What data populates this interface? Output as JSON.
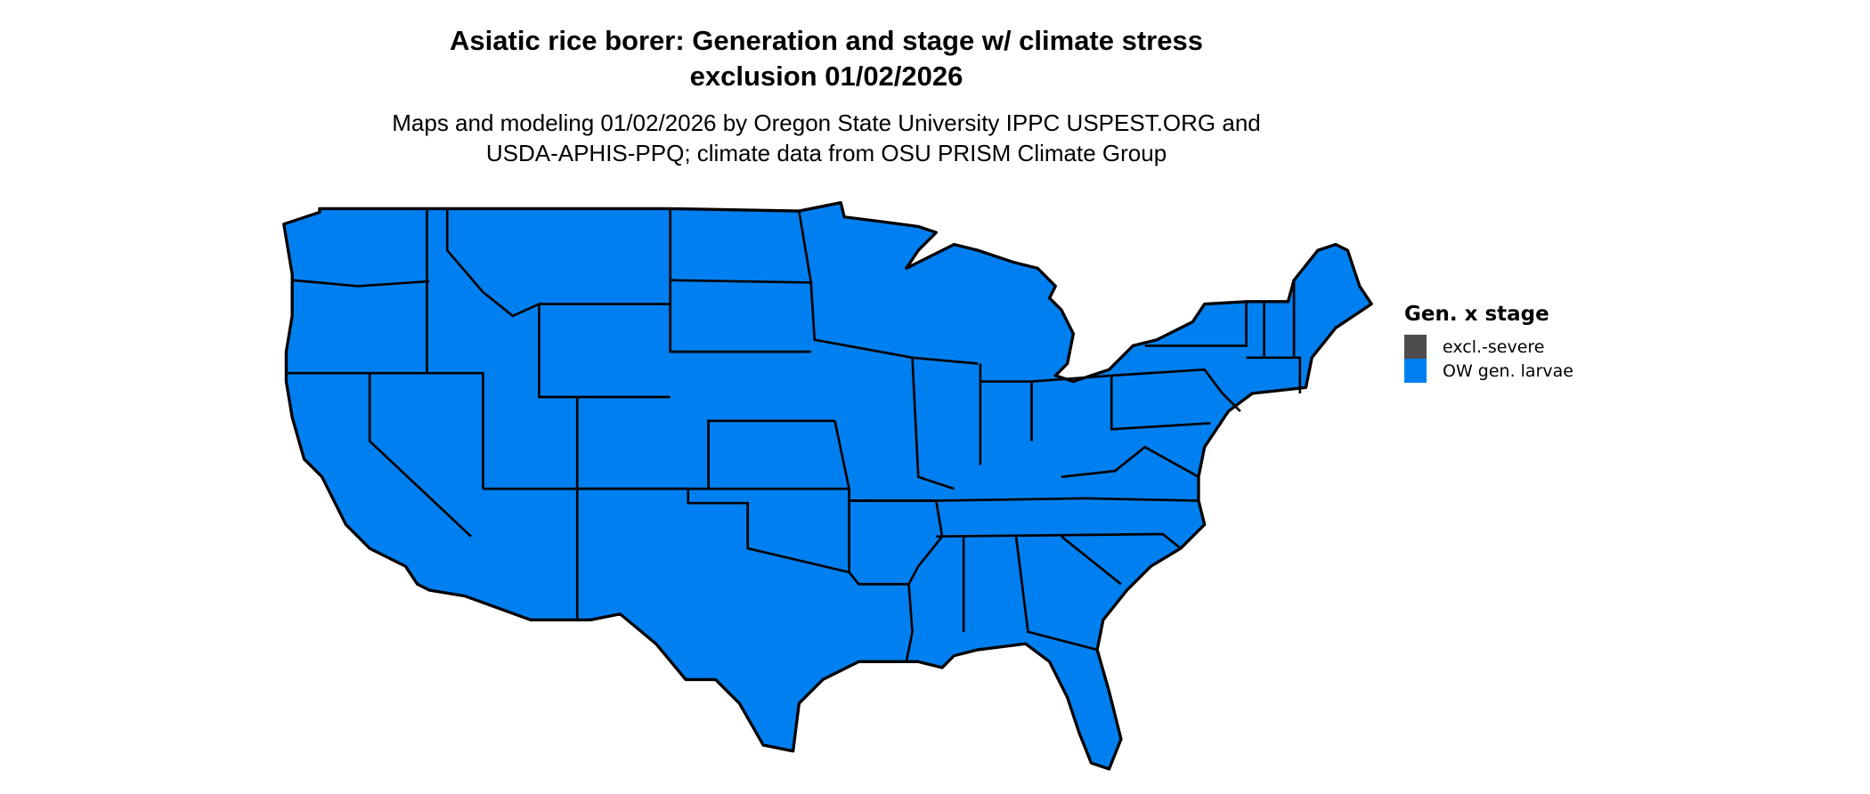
{
  "title_lines": [
    "Asiatic rice borer: Generation and stage w/ climate stress",
    "exclusion 01/02/2026"
  ],
  "subtitle_lines": [
    "Maps and modeling 01/02/2026 by Oregon State University IPPC USPEST.ORG and",
    "USDA-APHIS-PPQ; climate data from OSU PRISM Climate Group"
  ],
  "map": {
    "region": "Contiguous United States",
    "fill_color": "#0080f0",
    "border_color": "#000000"
  },
  "legend": {
    "title": "Gen. x stage",
    "items": [
      {
        "label": "excl.-severe",
        "color": "#4d4d4d"
      },
      {
        "label": "OW gen. larvae",
        "color": "#0080f0"
      }
    ]
  }
}
